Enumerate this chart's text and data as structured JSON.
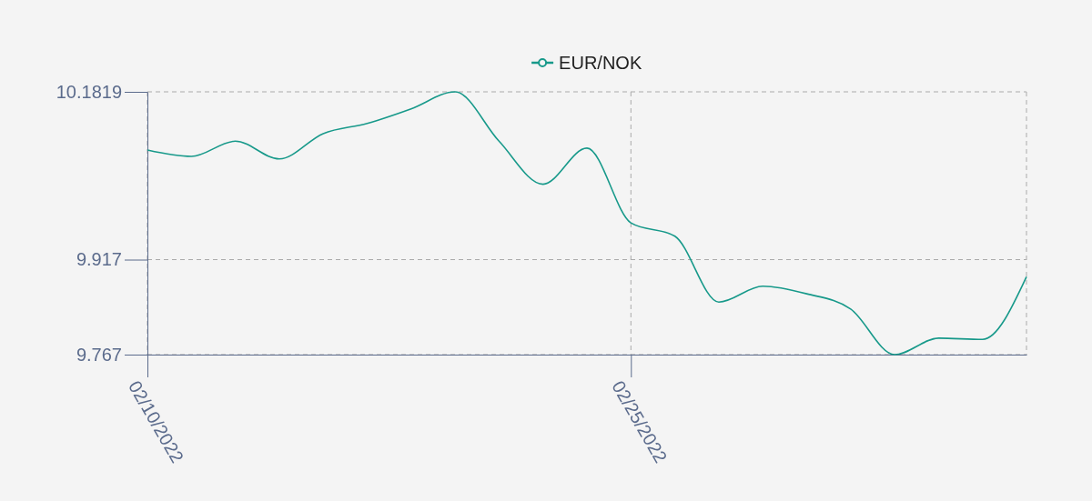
{
  "chart_data": {
    "type": "line",
    "categories": [
      "02/10/2022",
      null,
      null,
      null,
      null,
      null,
      null,
      null,
      null,
      null,
      null,
      "02/25/2022",
      null,
      null,
      null,
      null,
      null,
      null,
      null,
      null,
      null
    ],
    "series": [
      {
        "name": "EUR/NOK",
        "color": "#17998a",
        "values": [
          10.09,
          10.08,
          10.104,
          10.076,
          10.116,
          10.132,
          10.155,
          10.1819,
          10.104,
          10.036,
          10.093,
          9.975,
          9.954,
          9.85,
          9.875,
          9.863,
          9.839,
          9.767,
          9.793,
          9.791,
          9.89
        ]
      }
    ],
    "ylim": [
      9.767,
      10.1819
    ],
    "yticks": [
      9.767,
      9.917,
      10.1819
    ],
    "grid": true,
    "legend": "top",
    "marker": "none",
    "line_style": "solid"
  }
}
